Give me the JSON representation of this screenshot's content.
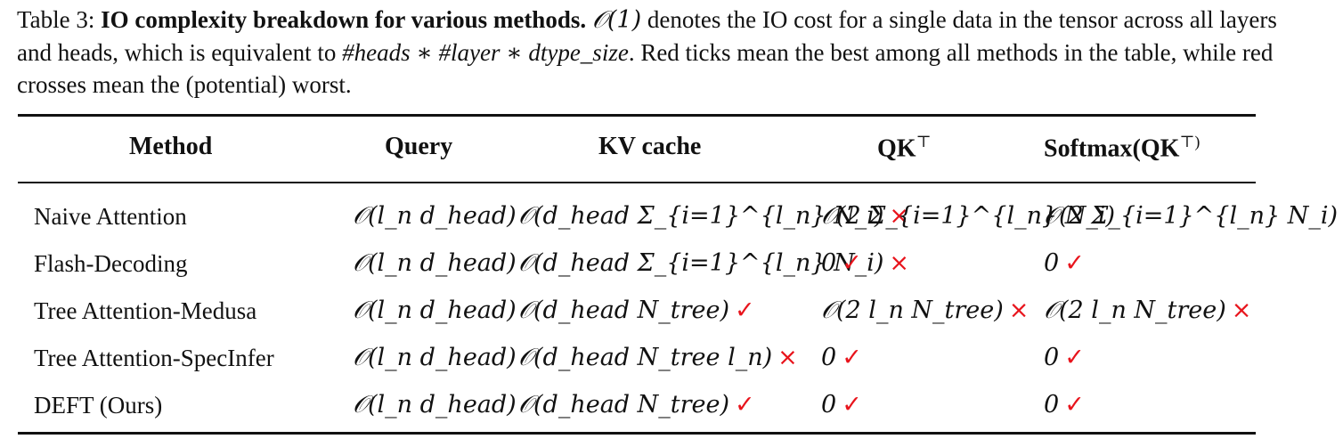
{
  "caption": {
    "label": "Table 3:",
    "title": "IO complexity breakdown for various methods.",
    "text_1": " denotes the IO cost for a single data in the tensor across all layers and heads, which is equivalent to ",
    "o1": "𝒪(1)",
    "formula": "#heads ∗ #layer ∗ dtype_size",
    "text_2": ". Red ticks mean the best among all methods in the table, while red crosses mean the (potential) worst."
  },
  "table": {
    "headers": [
      "Method",
      "Query",
      "KV cache",
      "QK",
      "Softmax(QK"
    ],
    "header_suffix": {
      "qk": "⊤",
      "softmax_close": "⊤)"
    },
    "rows": [
      {
        "method": "Naive Attention",
        "query": "𝒪(l_n d_head)",
        "kv": "𝒪(d_head Σ_{i=1}^{l_n} N_i)",
        "kv_mark": "×",
        "qk": "𝒪(2 Σ_{i=1}^{l_n} N_i)",
        "qk_mark": "",
        "softmax": "𝒪(2 Σ_{i=1}^{l_n} N_i)",
        "softmax_mark": ""
      },
      {
        "method": "Flash-Decoding",
        "query": "𝒪(l_n d_head)",
        "kv": "𝒪(d_head Σ_{i=1}^{l_n} N_i)",
        "kv_mark": "×",
        "qk": "0",
        "qk_mark": "✓",
        "softmax": "0",
        "softmax_mark": "✓"
      },
      {
        "method": "Tree Attention-Medusa",
        "query": "𝒪(l_n d_head)",
        "kv": "𝒪(d_head N_tree)",
        "kv_mark": "✓",
        "qk": "𝒪(2 l_n N_tree)",
        "qk_mark": "×",
        "softmax": "𝒪(2 l_n N_tree)",
        "softmax_mark": "×"
      },
      {
        "method": "Tree Attention-SpecInfer",
        "query": "𝒪(l_n d_head)",
        "kv": "𝒪(d_head N_tree l_n)",
        "kv_mark": "×",
        "qk": "0",
        "qk_mark": "✓",
        "softmax": "0",
        "softmax_mark": "✓"
      },
      {
        "method": "DEFT (Ours)",
        "query": "𝒪(l_n d_head)",
        "kv": "𝒪(d_head N_tree)",
        "kv_mark": "✓",
        "qk": "0",
        "qk_mark": "✓",
        "softmax": "0",
        "softmax_mark": "✓"
      }
    ]
  },
  "colors": {
    "mark": "#e8141c",
    "text": "#111111"
  }
}
